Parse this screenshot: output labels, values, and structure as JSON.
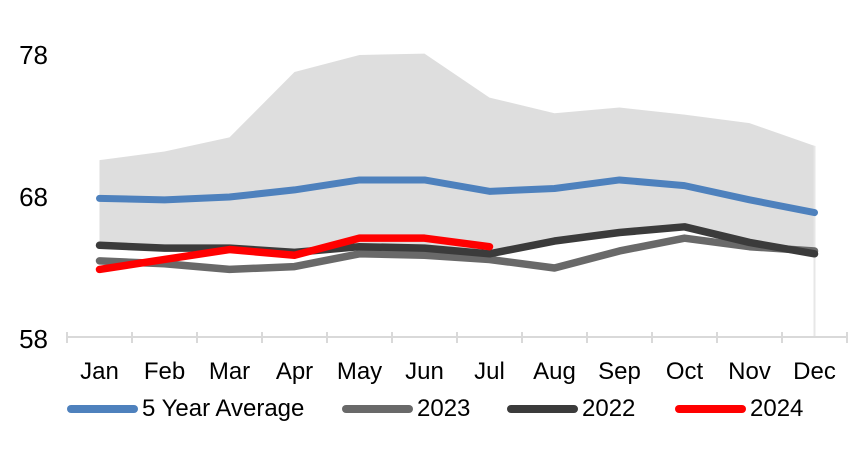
{
  "chart_data": {
    "type": "line",
    "title": "",
    "months": [
      "Jan",
      "Feb",
      "Mar",
      "Apr",
      "May",
      "Jun",
      "Jul",
      "Aug",
      "Sep",
      "Oct",
      "Nov",
      "Dec"
    ],
    "y_ticks": [
      58,
      68,
      78
    ],
    "ylim": [
      58,
      78
    ],
    "grid": "off",
    "legend_position": "bottom",
    "band": {
      "upper": [
        70.6,
        71.2,
        72.2,
        76.8,
        78.0,
        78.1,
        75.0,
        73.9,
        74.3,
        73.8,
        73.2,
        71.6
      ],
      "lower": [
        64.5,
        64.3,
        64.3,
        64.0,
        64.6,
        64.5,
        63.9,
        64.8,
        65.4,
        65.8,
        64.7,
        63.9
      ],
      "color": "#DEDEDE"
    },
    "series": [
      {
        "name": "5 Year Average",
        "color": "#4E81BD",
        "values": [
          67.9,
          67.8,
          68.0,
          68.5,
          69.2,
          69.2,
          68.4,
          68.6,
          69.2,
          68.8,
          67.8,
          66.9
        ]
      },
      {
        "name": "2023",
        "color": "#696969",
        "values": [
          63.5,
          63.3,
          62.9,
          63.1,
          64.0,
          63.9,
          63.6,
          63.0,
          64.2,
          65.1,
          64.5,
          64.2
        ]
      },
      {
        "name": "2022",
        "color": "#3B3B3B",
        "values": [
          64.6,
          64.4,
          64.4,
          64.1,
          64.5,
          64.4,
          64.0,
          64.9,
          65.5,
          65.9,
          64.8,
          64.0
        ]
      },
      {
        "name": "2024",
        "color": "#FF0000",
        "values": [
          62.9,
          63.6,
          64.3,
          63.9,
          65.1,
          65.1,
          64.5
        ]
      }
    ],
    "legend": [
      {
        "label": "5 Year Average",
        "color": "#4E81BD"
      },
      {
        "label": "2023",
        "color": "#696969"
      },
      {
        "label": "2022",
        "color": "#3B3B3B"
      },
      {
        "label": "2024",
        "color": "#FF0000"
      }
    ],
    "axis_color": "#D9D9D9",
    "text_color": "#000000",
    "background": "#FFFFFF"
  }
}
